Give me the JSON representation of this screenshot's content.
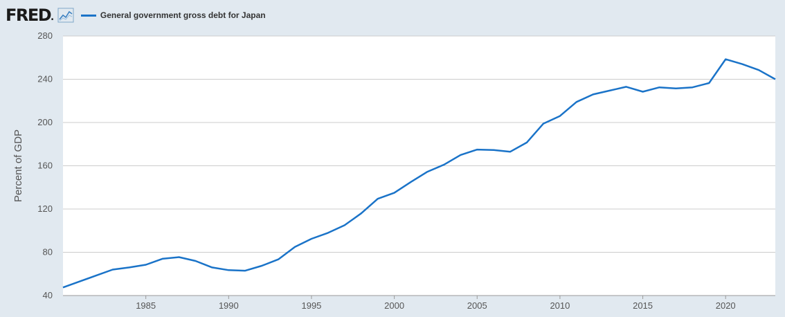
{
  "header": {
    "logo_text": "FRED",
    "logo_mark": ".",
    "chart_icon": "line-chart-icon"
  },
  "colors": {
    "background": "#e1e9f0",
    "plot_background": "#ffffff",
    "series": "#1a73c8",
    "grid": "#cccccc"
  },
  "chart_data": {
    "type": "line",
    "title": "",
    "xlabel": "",
    "ylabel": "Percent of GDP",
    "xlim": [
      1980,
      2023
    ],
    "ylim": [
      40,
      280
    ],
    "yticks": [
      40,
      80,
      120,
      160,
      200,
      240,
      280
    ],
    "xticks": [
      1985,
      1990,
      1995,
      2000,
      2005,
      2010,
      2015,
      2020
    ],
    "grid": true,
    "legend": "top-left",
    "series": [
      {
        "name": "General government gross debt for Japan",
        "x": [
          1980,
          1981,
          1982,
          1983,
          1984,
          1985,
          1986,
          1987,
          1988,
          1989,
          1990,
          1991,
          1992,
          1993,
          1994,
          1995,
          1996,
          1997,
          1998,
          1999,
          2000,
          2001,
          2002,
          2003,
          2004,
          2005,
          2006,
          2007,
          2008,
          2009,
          2010,
          2011,
          2012,
          2013,
          2014,
          2015,
          2016,
          2017,
          2018,
          2019,
          2020,
          2021,
          2022,
          2023
        ],
        "y": [
          47.5,
          53,
          58.5,
          64,
          66,
          68.5,
          74,
          75.5,
          72,
          66,
          63.5,
          63,
          67.5,
          73.5,
          85,
          92.5,
          98,
          105,
          116,
          129.5,
          135,
          145,
          154.5,
          161,
          170,
          175,
          174.5,
          173,
          181.5,
          199,
          206,
          219,
          226,
          229.5,
          233,
          228.5,
          232.5,
          231.5,
          232.5,
          236.5,
          258.5,
          254,
          248.5,
          240
        ]
      }
    ]
  }
}
